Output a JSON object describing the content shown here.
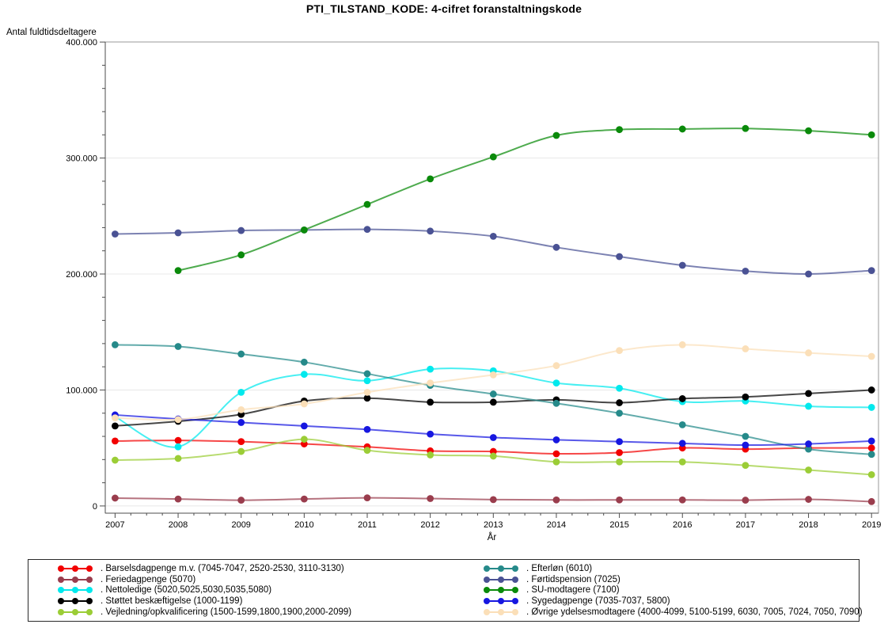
{
  "title": "PTI_TILSTAND_KODE: 4-cifret foranstaltningskode",
  "chart_data": {
    "type": "line",
    "title": "PTI_TILSTAND_KODE: 4-cifret foranstaltningskode",
    "xlabel": "År",
    "ylabel": "Antal fuldtidsdeltagere",
    "x": [
      2007,
      2008,
      2009,
      2010,
      2011,
      2012,
      2013,
      2014,
      2015,
      2016,
      2017,
      2018,
      2019
    ],
    "ylim": [
      0,
      400000
    ],
    "grid": true,
    "legend_position": "bottom",
    "y_major_ticks": {
      "values": [
        0,
        100000,
        200000,
        300000,
        400000
      ],
      "labels": [
        "0",
        "100.000",
        "200.000",
        "300.000",
        "400.000"
      ]
    },
    "y_minor_step": 20000,
    "x_minor_per_year": 4,
    "series": [
      {
        "name": ". Barselsdagpenge m.v. (7045-7047, 2520-2530, 3110-3130)",
        "color": "#f20000",
        "values": [
          56000,
          56500,
          55500,
          53500,
          51000,
          47500,
          47000,
          45000,
          46000,
          50000,
          49000,
          50000,
          50000
        ]
      },
      {
        "name": ". Feriedagpenge (5070)",
        "color": "#9a3d4d",
        "values": [
          6800,
          6000,
          5000,
          6000,
          7000,
          6400,
          5500,
          5200,
          5200,
          5200,
          5000,
          5700,
          3800
        ]
      },
      {
        "name": ". Nettoledige (5020,5025,5030,5035,5080)",
        "color": "#00e9ed",
        "values": [
          77000,
          51000,
          98000,
          113500,
          108000,
          118000,
          116500,
          106000,
          101500,
          90000,
          90500,
          86000,
          85000
        ]
      },
      {
        "name": ". Støttet beskæftigelse  (1000-1199)",
        "color": "#000000",
        "values": [
          69000,
          73000,
          79000,
          90500,
          93000,
          89500,
          89500,
          91500,
          89000,
          92500,
          94000,
          97000,
          100000
        ]
      },
      {
        "name": ". Vejledning/opkvalificering (1500-1599,1800,1900,2000-2099)",
        "color": "#9bcd36",
        "values": [
          39500,
          41000,
          47000,
          57500,
          48000,
          44000,
          43000,
          38000,
          38000,
          38000,
          35000,
          31000,
          27000
        ]
      },
      {
        "name": ". Efterløn (6010)",
        "color": "#268a8a",
        "values": [
          139000,
          137500,
          131000,
          124000,
          114000,
          104000,
          96500,
          88500,
          80000,
          70000,
          60000,
          49000,
          44500
        ]
      },
      {
        "name": ". Førtidspension (7025)",
        "color": "#4a5294",
        "values": [
          234500,
          235500,
          237500,
          238000,
          238500,
          237000,
          232500,
          223000,
          215000,
          207500,
          202500,
          200000,
          203000
        ]
      },
      {
        "name": ". SU-modtagere (7100)",
        "color": "#0a8a0a",
        "values": [
          null,
          203000,
          216500,
          238000,
          260000,
          282000,
          301000,
          319500,
          324500,
          325000,
          325500,
          323500,
          320000
        ]
      },
      {
        "name": ". Sygedagpenge (7035-7037, 5800)",
        "color": "#1717e0",
        "values": [
          78500,
          75000,
          72000,
          69000,
          66000,
          62000,
          59000,
          57000,
          55500,
          54000,
          52500,
          53500,
          56000
        ]
      },
      {
        "name": ". Øvrige ydelsesmodtagere (4000-4099, 5100-5199, 6030, 7005, 7024, 7050, 7090)",
        "color": "#fbdfb8",
        "values": [
          76000,
          74500,
          83000,
          88000,
          98000,
          106000,
          113000,
          121000,
          134000,
          139000,
          135500,
          132000,
          129000
        ]
      }
    ],
    "legend_columns": [
      [
        0,
        1,
        2,
        3,
        4
      ],
      [
        5,
        6,
        7,
        8,
        9
      ]
    ]
  }
}
